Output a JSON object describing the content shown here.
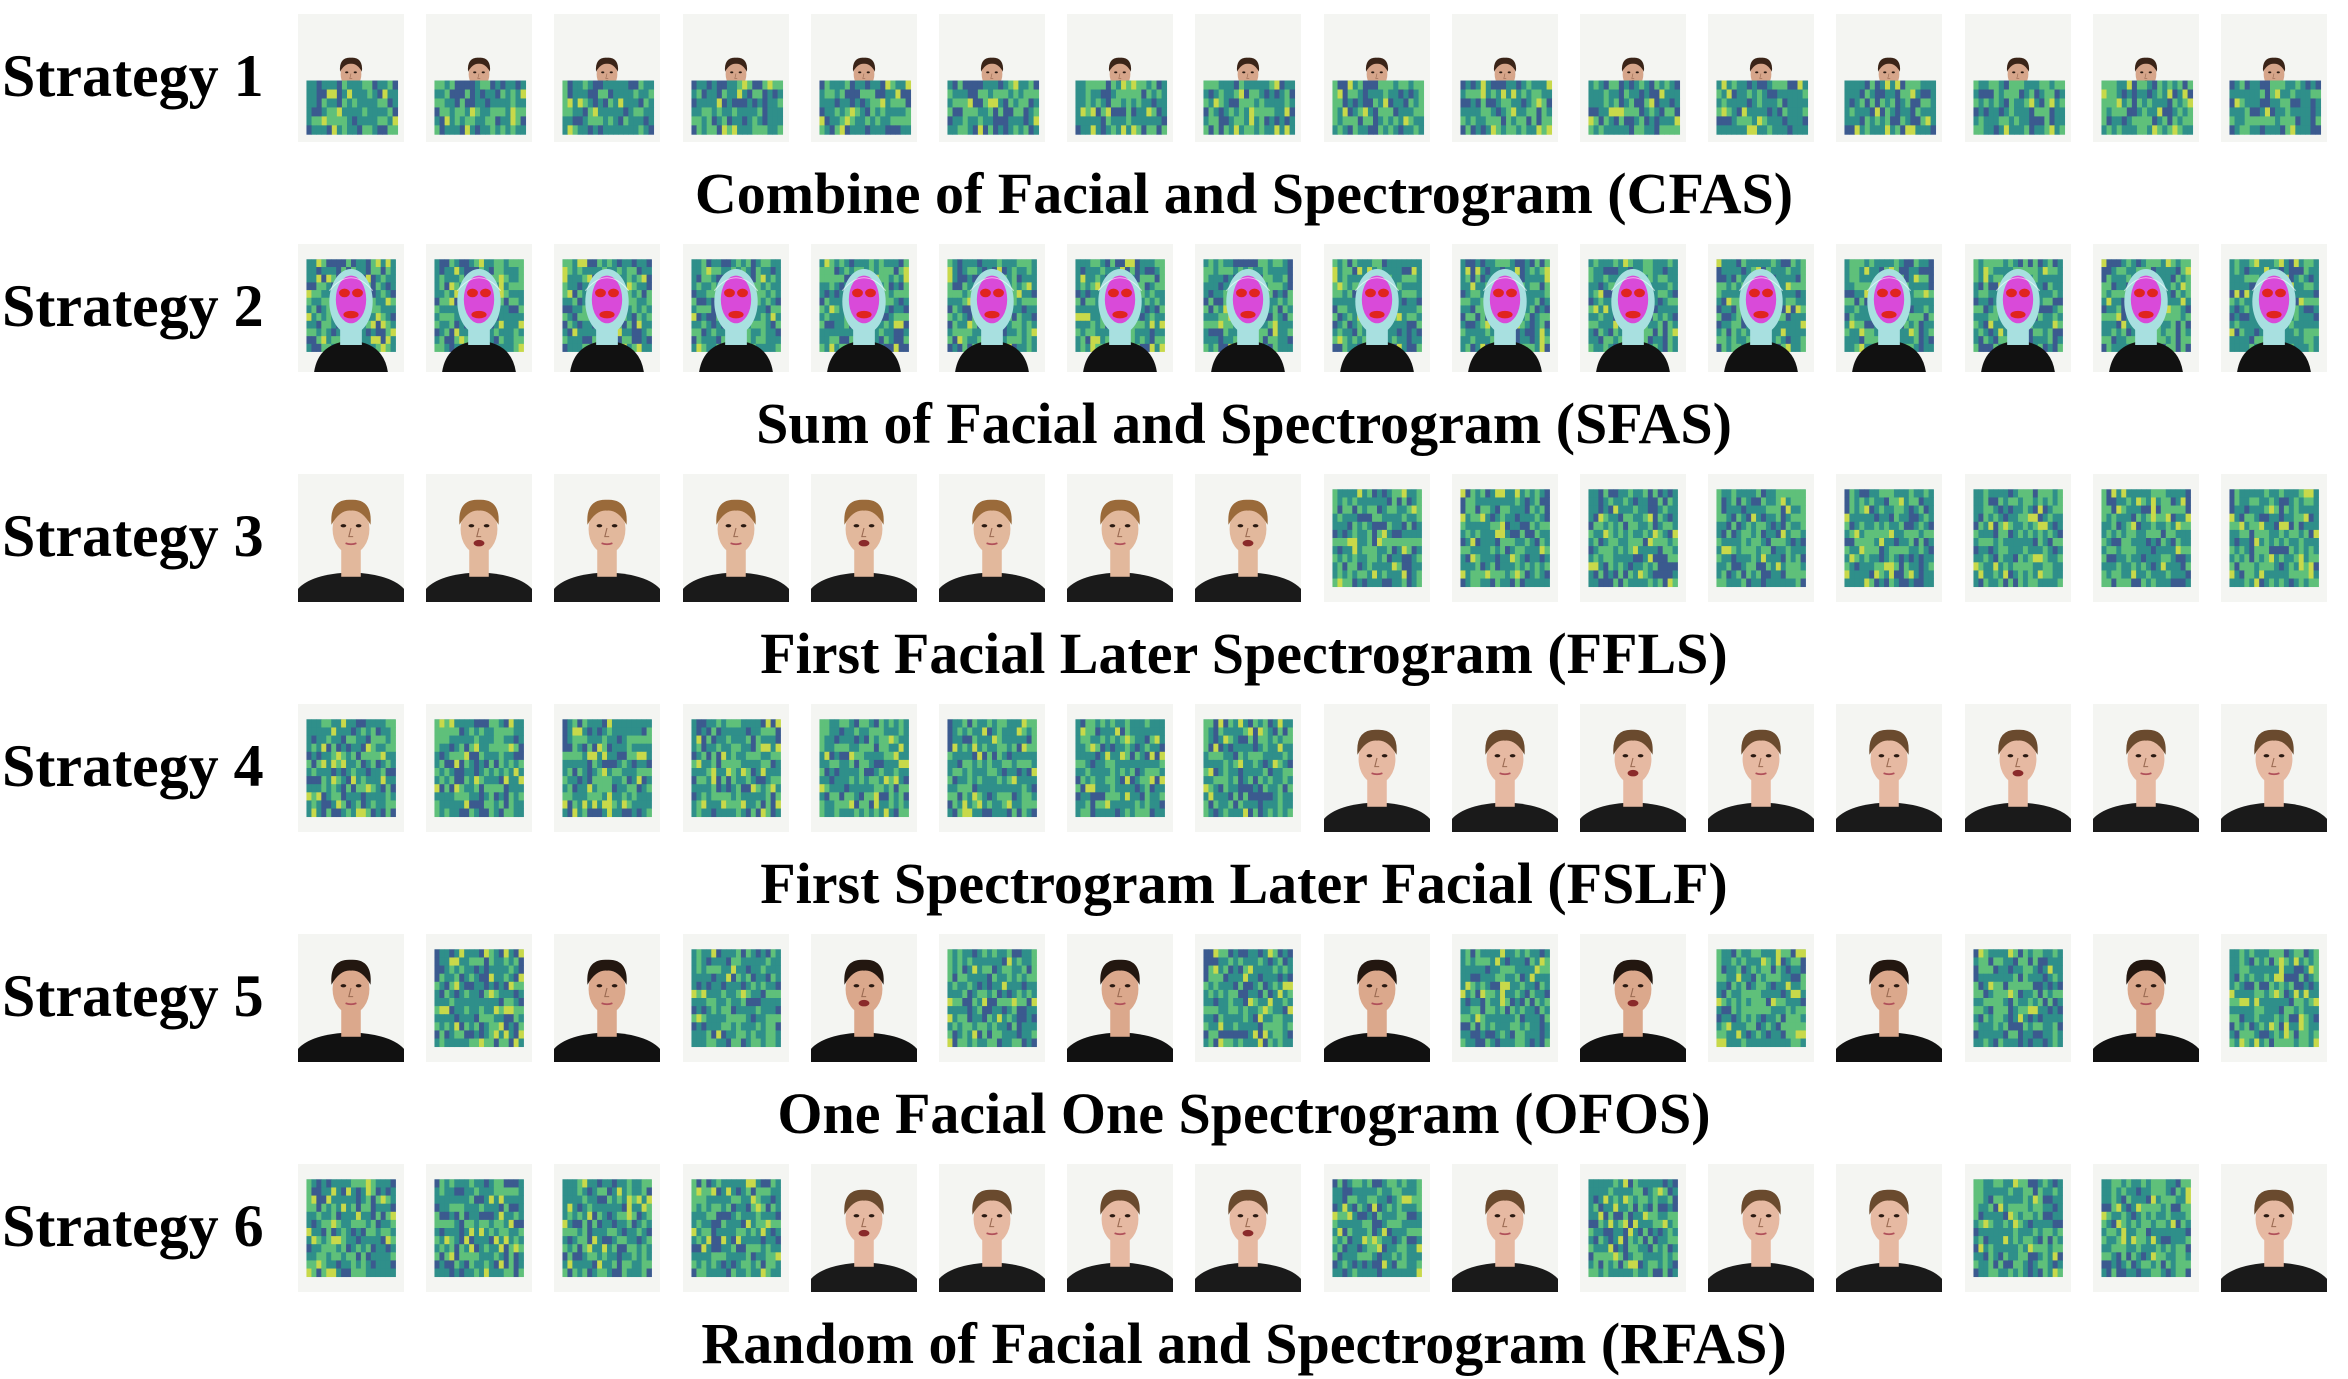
{
  "strategies": [
    {
      "label": "Strategy 1",
      "caption": "Combine of Facial and Spectrogram (CFAS)",
      "layout": "combined",
      "subject": "s1",
      "sequence": [
        "F",
        "F",
        "F",
        "F",
        "F",
        "F",
        "F",
        "F",
        "F",
        "F",
        "F",
        "F",
        "F",
        "F",
        "F",
        "F"
      ]
    },
    {
      "label": "Strategy 2",
      "caption": "Sum of Facial and Spectrogram (SFAS)",
      "layout": "overlay",
      "subject": "s2",
      "sequence": [
        "F",
        "F",
        "F",
        "F",
        "F",
        "F",
        "F",
        "F",
        "F",
        "F",
        "F",
        "F",
        "F",
        "F",
        "F",
        "F"
      ]
    },
    {
      "label": "Strategy 3",
      "caption": "First Facial Later Spectrogram (FFLS)",
      "layout": "sequence",
      "subject": "s3",
      "sequence": [
        "F",
        "F",
        "F",
        "F",
        "F",
        "F",
        "F",
        "F",
        "S",
        "S",
        "S",
        "S",
        "S",
        "S",
        "S",
        "S"
      ]
    },
    {
      "label": "Strategy 4",
      "caption": "First Spectrogram Later Facial (FSLF)",
      "layout": "sequence",
      "subject": "s4",
      "sequence": [
        "S",
        "S",
        "S",
        "S",
        "S",
        "S",
        "S",
        "S",
        "F",
        "F",
        "F",
        "F",
        "F",
        "F",
        "F",
        "F"
      ]
    },
    {
      "label": "Strategy 5",
      "caption": "One Facial One Spectrogram (OFOS)",
      "layout": "sequence",
      "subject": "s5",
      "sequence": [
        "F",
        "S",
        "F",
        "S",
        "F",
        "S",
        "F",
        "S",
        "F",
        "S",
        "F",
        "S",
        "F",
        "S",
        "F",
        "S"
      ]
    },
    {
      "label": "Strategy 6",
      "caption": "Random of Facial and Spectrogram (RFAS)",
      "layout": "sequence",
      "subject": "s4",
      "sequence": [
        "S",
        "S",
        "S",
        "S",
        "F",
        "F",
        "F",
        "F",
        "S",
        "F",
        "S",
        "F",
        "F",
        "S",
        "S",
        "F"
      ]
    }
  ],
  "colors": {
    "spec_dark": "#3b5a8f",
    "spec_mid": "#2f8f8a",
    "spec_light": "#5fc07a",
    "spec_hot": "#c8d94a",
    "background": "#f4f5f2",
    "overlay_red": "#e0241f",
    "overlay_magenta": "#d94ad9",
    "overlay_cyan": "#a8e0e0"
  },
  "subjects": {
    "s1": {
      "skin": "#d6a58a",
      "hair": "#3a2418",
      "shirt": "#f0e6dc"
    },
    "s2": {
      "skin": "#d6a58a",
      "hair": "#3a2418",
      "shirt": "#1a1a1a"
    },
    "s3": {
      "skin": "#e2b89c",
      "hair": "#9a6a3a",
      "shirt": "#1a1a1a"
    },
    "s4": {
      "skin": "#e6b9a2",
      "hair": "#6a4a2e",
      "shirt": "#1a1a1a"
    },
    "s5": {
      "skin": "#dba88c",
      "hair": "#231710",
      "shirt": "#111111"
    }
  }
}
